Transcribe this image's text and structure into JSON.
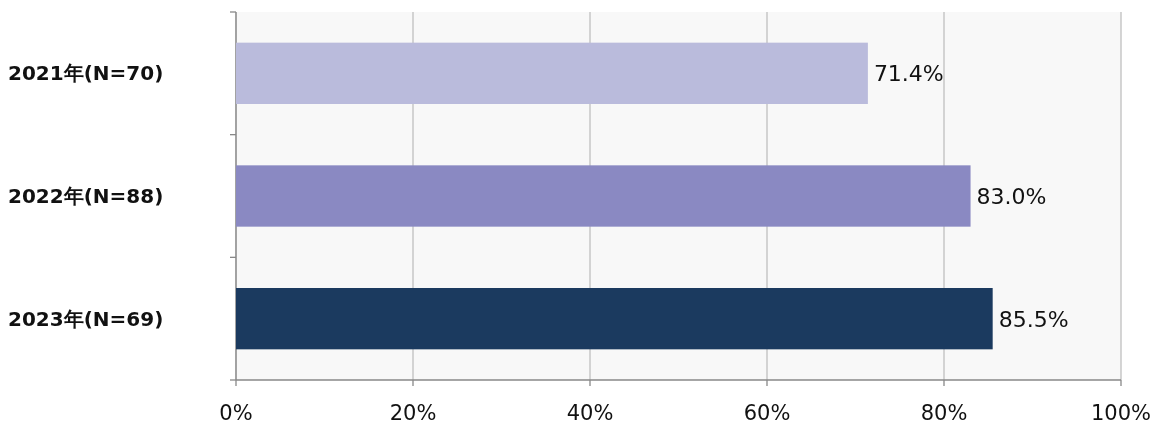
{
  "chart_data": {
    "type": "bar",
    "orientation": "horizontal",
    "categories": [
      "2021年(N=70)",
      "2022年(N=88)",
      "2023年(N=69)"
    ],
    "values": [
      71.4,
      83.0,
      85.5
    ],
    "colors": [
      "#babbdc",
      "#8a89c2",
      "#1b3a5f"
    ],
    "value_labels": [
      "71.4%",
      "83.0%",
      "85.5%"
    ],
    "xlim": [
      0,
      100
    ],
    "xticks": [
      {
        "value": 0,
        "label": "0%"
      },
      {
        "value": 20,
        "label": "20%"
      },
      {
        "value": 40,
        "label": "40%"
      },
      {
        "value": 60,
        "label": "60%"
      },
      {
        "value": 80,
        "label": "80%"
      },
      {
        "value": 100,
        "label": "100%"
      }
    ],
    "grid": "x"
  }
}
